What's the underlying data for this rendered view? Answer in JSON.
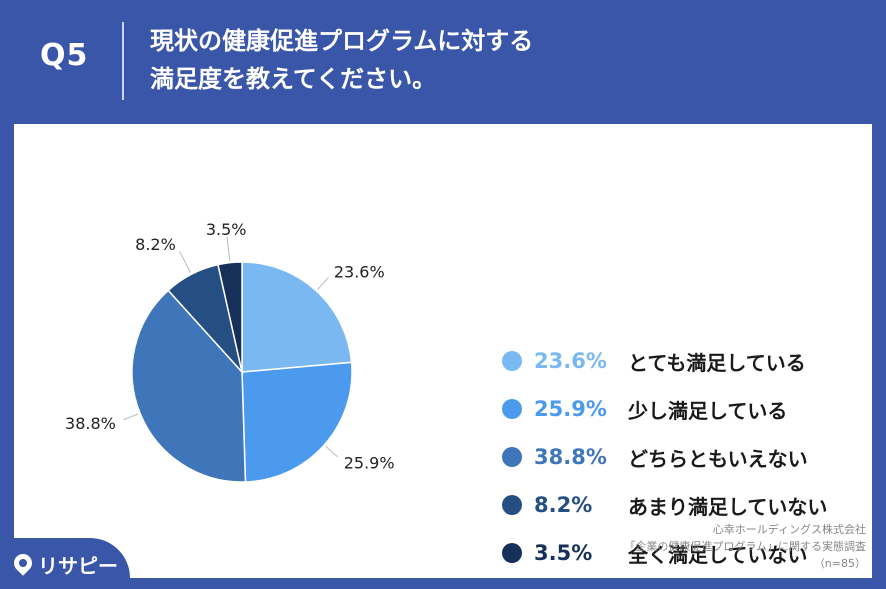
{
  "header": {
    "q_label": "Q5",
    "title_line1": "現状の健康促進プログラムに対する",
    "title_line2": "満足度を教えてください。"
  },
  "chart_data": {
    "type": "pie",
    "title": "",
    "slices": [
      {
        "label": "とても満足している",
        "value": 23.6,
        "value_label": "23.6%",
        "color": "#7ab8f2"
      },
      {
        "label": "少し満足している",
        "value": 25.9,
        "value_label": "25.9%",
        "color": "#4b9aee"
      },
      {
        "label": "どちらともいえない",
        "value": 38.8,
        "value_label": "38.8%",
        "color": "#3f75b9"
      },
      {
        "label": "あまり満足していない",
        "value": 8.2,
        "value_label": "8.2%",
        "color": "#254f83"
      },
      {
        "label": "全く満足していない",
        "value": 3.5,
        "value_label": "3.5%",
        "color": "#17305a"
      }
    ],
    "legend_position": "right"
  },
  "source": {
    "line1": "心幸ホールディングス株式会社",
    "line2": "「企業の健康促進プログラム」に関する実態調査",
    "line3": "（n=85）"
  },
  "logo": {
    "text": "リサピー",
    "icon": "map-pin-icon"
  }
}
